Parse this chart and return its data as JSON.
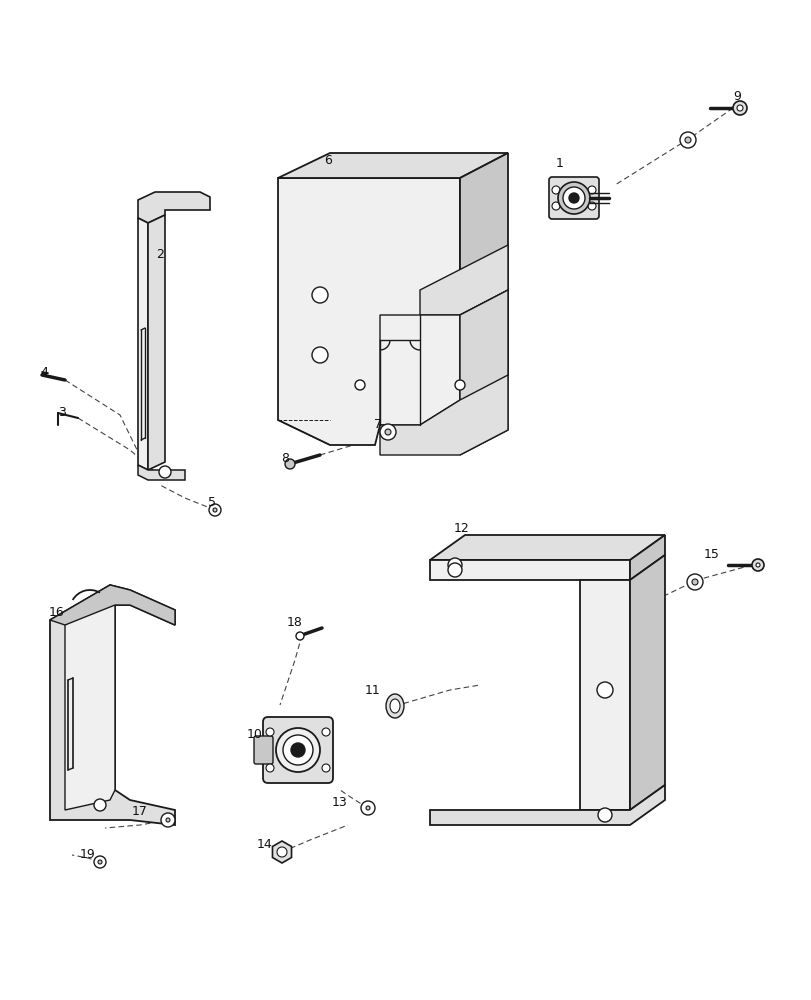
{
  "bg_color": "#ffffff",
  "line_color": "#1a1a1a",
  "dash_color": "#444444",
  "fill_light": "#f0f0f0",
  "fill_mid": "#e0e0e0",
  "fill_dark": "#c8c8c8"
}
